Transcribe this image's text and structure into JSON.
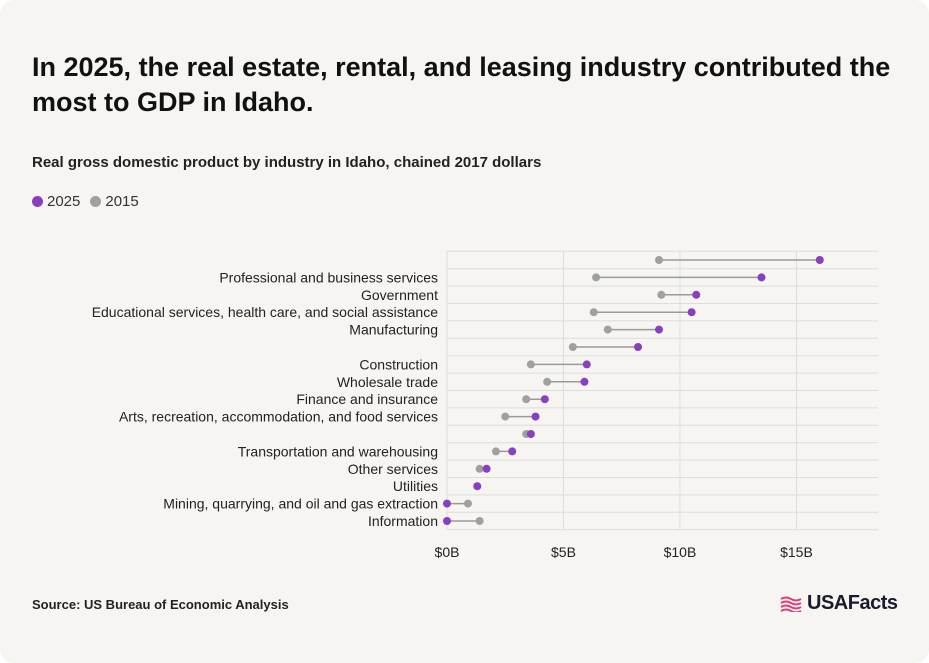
{
  "title": "In 2025, the real estate, rental, and leasing industry contributed the most to GDP in Idaho.",
  "subtitle": "Real gross domestic product by industry in Idaho, chained 2017 dollars",
  "source": "Source: US Bureau of Economic Analysis",
  "brand": "USAFacts",
  "colors": {
    "2025": "#8a3ec0",
    "2015": "#a0a0a0",
    "connector": "#9a9a9a",
    "grid": "#dddddd",
    "background": "#f6f5f1"
  },
  "chart_data": {
    "type": "dumbbell",
    "orientation": "horizontal",
    "legend_position": "top-left",
    "grid": true,
    "xlim": [
      0,
      18.5
    ],
    "xticks": [
      0,
      5,
      10,
      15
    ],
    "xtick_labels": [
      "$0B",
      "$5B",
      "$10B",
      "$15B"
    ],
    "series": [
      {
        "name": "2025",
        "color": "#8a3ec0"
      },
      {
        "name": "2015",
        "color": "#a0a0a0"
      }
    ],
    "categories": [
      "",
      "Professional and business services",
      "Government",
      "Educational services, health care, and social assistance",
      "Manufacturing",
      "",
      "Construction",
      "Wholesale trade",
      "Finance and insurance",
      "Arts, recreation, accommodation, and food services",
      "",
      "Transportation and warehousing",
      "Other services",
      "Utilities",
      "Mining, quarrying, and oil and gas extraction",
      "Information"
    ],
    "values_2025": [
      16.0,
      13.5,
      10.7,
      10.5,
      9.1,
      8.2,
      6.0,
      5.9,
      4.2,
      3.8,
      3.6,
      2.8,
      1.7,
      1.3,
      0.0,
      0.0
    ],
    "values_2015": [
      9.1,
      6.4,
      9.2,
      6.3,
      6.9,
      5.4,
      3.6,
      4.3,
      3.4,
      2.5,
      3.4,
      2.1,
      1.4,
      1.3,
      0.9,
      1.4
    ]
  }
}
